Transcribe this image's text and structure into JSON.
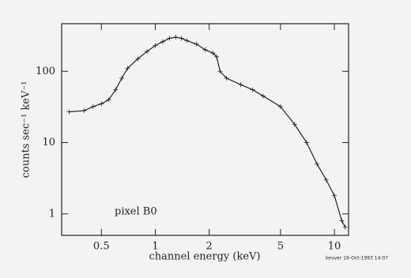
{
  "chart_data": {
    "type": "line",
    "x_label": "channel energy (keV)",
    "y_label": "counts sec⁻¹ keV⁻¹",
    "annotation": "pixel B0",
    "footer": "kevver 19-Oct-1993 14:07",
    "x": [
      0.33,
      0.4,
      0.45,
      0.5,
      0.55,
      0.6,
      0.65,
      0.7,
      0.8,
      0.9,
      1.0,
      1.1,
      1.2,
      1.3,
      1.4,
      1.5,
      1.7,
      1.9,
      2.1,
      2.2,
      2.3,
      2.5,
      3,
      3.5,
      4,
      5,
      6,
      7,
      8,
      9,
      10,
      11,
      11.5
    ],
    "series": [
      {
        "color": "#222222",
        "values": [
          27,
          28,
          32,
          35,
          40,
          55,
          80,
          110,
          150,
          190,
          230,
          260,
          290,
          300,
          290,
          270,
          240,
          200,
          180,
          160,
          100,
          80,
          65,
          55,
          45,
          32,
          18,
          10,
          5,
          3,
          1.8,
          0.8,
          0.65
        ]
      }
    ],
    "log_x": true,
    "log_y": true,
    "xlim": [
      0.3,
      12
    ],
    "ylim": [
      0.5,
      465
    ],
    "xticks": [
      0.5,
      1,
      2,
      5,
      10
    ],
    "yticks": [
      1,
      10,
      100
    ]
  }
}
